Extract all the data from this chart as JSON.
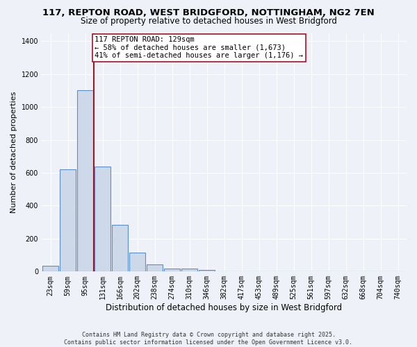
{
  "title_line1": "117, REPTON ROAD, WEST BRIDGFORD, NOTTINGHAM, NG2 7EN",
  "title_line2": "Size of property relative to detached houses in West Bridgford",
  "xlabel": "Distribution of detached houses by size in West Bridgford",
  "ylabel": "Number of detached properties",
  "categories": [
    "23sqm",
    "59sqm",
    "95sqm",
    "131sqm",
    "166sqm",
    "202sqm",
    "238sqm",
    "274sqm",
    "310sqm",
    "346sqm",
    "382sqm",
    "417sqm",
    "453sqm",
    "489sqm",
    "525sqm",
    "561sqm",
    "597sqm",
    "632sqm",
    "668sqm",
    "704sqm",
    "740sqm"
  ],
  "values": [
    35,
    620,
    1100,
    640,
    285,
    115,
    45,
    20,
    20,
    10,
    0,
    0,
    0,
    0,
    0,
    0,
    0,
    0,
    0,
    0,
    0
  ],
  "bar_color": "#cdd8e8",
  "bar_edge_color": "#5b8fc9",
  "bar_edge_width": 0.8,
  "vline_color": "#aa1122",
  "annotation_text": "117 REPTON ROAD: 129sqm\n← 58% of detached houses are smaller (1,673)\n41% of semi-detached houses are larger (1,176) →",
  "annotation_box_color": "#ffffff",
  "annotation_box_edge_color": "#aa1122",
  "ylim": [
    0,
    1450
  ],
  "yticks": [
    0,
    200,
    400,
    600,
    800,
    1000,
    1200,
    1400
  ],
  "background_color": "#eef2f8",
  "grid_color": "#ffffff",
  "footer_line1": "Contains HM Land Registry data © Crown copyright and database right 2025.",
  "footer_line2": "Contains public sector information licensed under the Open Government Licence v3.0.",
  "title_fontsize": 9.5,
  "subtitle_fontsize": 8.5,
  "tick_fontsize": 7,
  "annotation_fontsize": 7.5,
  "ylabel_fontsize": 8,
  "xlabel_fontsize": 8.5,
  "footer_fontsize": 6
}
